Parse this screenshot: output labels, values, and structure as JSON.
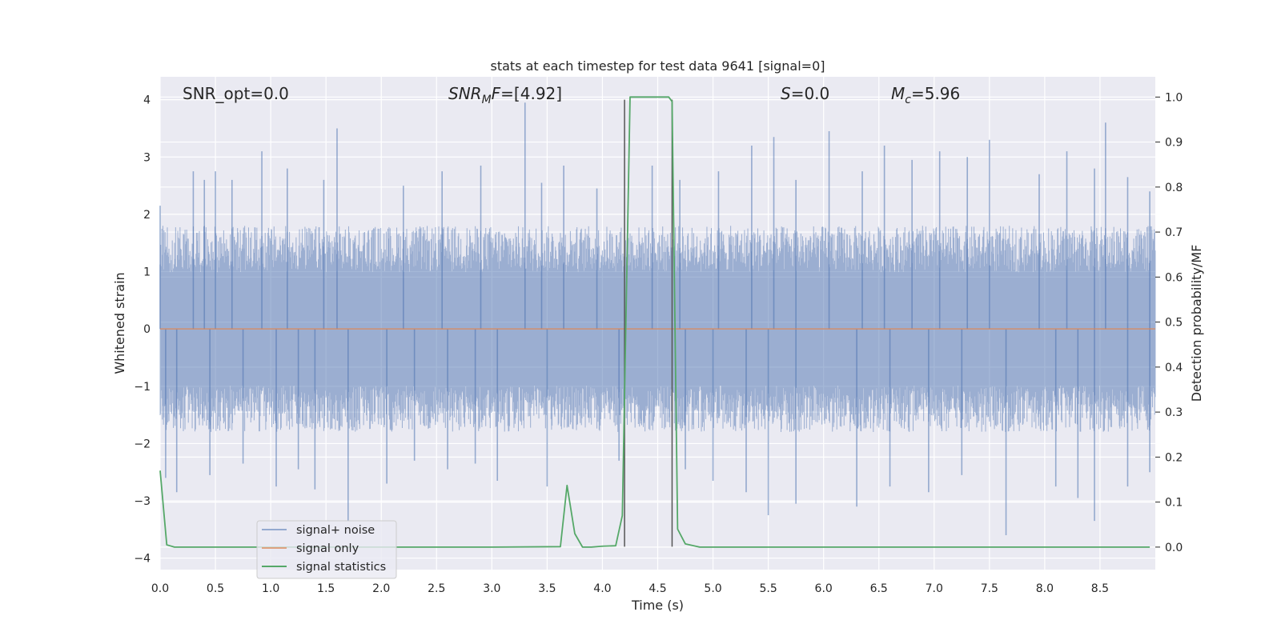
{
  "chart_data": {
    "type": "line",
    "title": "stats at each timestep for test data 9641 [signal=0]",
    "xlabel": "Time (s)",
    "ylabel": "Whitened strain",
    "ylabel_right": "Detection probability/MF",
    "xlim": [
      0.0,
      9.0
    ],
    "ylim": [
      -4.2,
      4.4
    ],
    "ylim_right": [
      -0.05,
      1.045
    ],
    "x_ticks": [
      "0.0",
      "0.5",
      "1.0",
      "1.5",
      "2.0",
      "2.5",
      "3.0",
      "3.5",
      "4.0",
      "4.5",
      "5.0",
      "5.5",
      "6.0",
      "6.5",
      "7.0",
      "7.5",
      "8.0",
      "8.5"
    ],
    "y_ticks": [
      "4",
      "3",
      "2",
      "1",
      "0",
      "−1",
      "−2",
      "−3",
      "−4"
    ],
    "y_ticks_right": [
      "1.0",
      "0.9",
      "0.8",
      "0.7",
      "0.6",
      "0.5",
      "0.4",
      "0.3",
      "0.2",
      "0.1",
      "0.0"
    ],
    "grid": true,
    "legend_position": "lower-left",
    "annotations": {
      "snr_opt": "SNR_opt=0.0",
      "snr_mf_pre": "SNR",
      "snr_mf_sub": "M",
      "snr_mf_post": "F=[4.92]",
      "s_pre": "S",
      "s_post": "=0.0",
      "mc_pre": "M",
      "mc_sub": "c",
      "mc_post": "=5.96"
    },
    "series": [
      {
        "name": "signal+ noise",
        "color": "#4c72b0",
        "description": "whitened noisy strain sampled over 0-9 s",
        "envelope": {
          "typical_max": 1.8,
          "typical_min": -1.8,
          "peak_max": 3.97,
          "peak_min": -3.6
        },
        "spikes_up": [
          [
            0.0,
            2.15
          ],
          [
            0.3,
            2.75
          ],
          [
            0.4,
            2.6
          ],
          [
            0.5,
            2.75
          ],
          [
            0.65,
            2.6
          ],
          [
            0.92,
            3.1
          ],
          [
            1.15,
            2.8
          ],
          [
            1.48,
            2.6
          ],
          [
            1.6,
            3.5
          ],
          [
            2.2,
            2.5
          ],
          [
            2.55,
            2.75
          ],
          [
            2.9,
            2.85
          ],
          [
            3.3,
            3.95
          ],
          [
            3.45,
            2.55
          ],
          [
            3.65,
            2.85
          ],
          [
            3.95,
            2.45
          ],
          [
            4.45,
            2.85
          ],
          [
            4.7,
            2.6
          ],
          [
            5.05,
            2.75
          ],
          [
            5.35,
            3.2
          ],
          [
            5.55,
            3.35
          ],
          [
            5.75,
            2.6
          ],
          [
            6.05,
            3.45
          ],
          [
            6.35,
            2.75
          ],
          [
            6.55,
            3.2
          ],
          [
            6.8,
            2.95
          ],
          [
            7.05,
            3.1
          ],
          [
            7.3,
            3.0
          ],
          [
            7.5,
            3.3
          ],
          [
            7.95,
            2.7
          ],
          [
            8.2,
            3.1
          ],
          [
            8.45,
            2.8
          ],
          [
            8.55,
            3.6
          ],
          [
            8.75,
            2.65
          ],
          [
            8.95,
            2.4
          ]
        ],
        "spikes_down": [
          [
            0.05,
            -2.6
          ],
          [
            0.15,
            -2.85
          ],
          [
            0.45,
            -2.55
          ],
          [
            0.75,
            -2.35
          ],
          [
            1.05,
            -2.75
          ],
          [
            1.25,
            -2.45
          ],
          [
            1.4,
            -2.8
          ],
          [
            1.7,
            -3.35
          ],
          [
            2.05,
            -2.7
          ],
          [
            2.3,
            -2.3
          ],
          [
            2.6,
            -2.45
          ],
          [
            2.85,
            -2.35
          ],
          [
            3.05,
            -2.65
          ],
          [
            3.5,
            -2.75
          ],
          [
            4.15,
            -2.3
          ],
          [
            4.75,
            -2.45
          ],
          [
            5.0,
            -2.65
          ],
          [
            5.3,
            -2.85
          ],
          [
            5.5,
            -3.25
          ],
          [
            5.75,
            -3.05
          ],
          [
            6.3,
            -3.1
          ],
          [
            6.6,
            -2.75
          ],
          [
            6.95,
            -2.85
          ],
          [
            7.25,
            -2.55
          ],
          [
            7.65,
            -3.6
          ],
          [
            8.1,
            -2.75
          ],
          [
            8.3,
            -2.95
          ],
          [
            8.45,
            -3.35
          ],
          [
            8.75,
            -2.75
          ],
          [
            8.95,
            -2.5
          ]
        ]
      },
      {
        "name": "signal only",
        "color": "#dd8452",
        "x": [
          0.0,
          9.0
        ],
        "y": [
          0.0,
          0.0
        ]
      },
      {
        "name": "signal statistics",
        "color": "#55a868",
        "axis": "right",
        "x": [
          0.0,
          0.06,
          0.13,
          0.5,
          1.0,
          2.0,
          3.0,
          3.62,
          3.68,
          3.75,
          3.82,
          3.9,
          4.0,
          4.12,
          4.18,
          4.25,
          4.6,
          4.63,
          4.68,
          4.75,
          4.88,
          5.5,
          7.0,
          8.95
        ],
        "y": [
          0.17,
          0.005,
          0.0,
          0.0,
          0.0,
          0.0,
          0.0,
          0.001,
          0.137,
          0.03,
          0.0,
          0.0,
          0.002,
          0.003,
          0.07,
          1.0,
          1.0,
          0.99,
          0.04,
          0.007,
          0.0,
          0.0,
          0.0,
          0.0
        ]
      }
    ],
    "vertical_lines": {
      "x": [
        4.2,
        4.63
      ],
      "y_top": 4.0,
      "y_bottom": -3.8,
      "color": "#555555"
    },
    "colors": {
      "plot_background": "#eaeaf2",
      "grid": "#ffffff"
    }
  }
}
